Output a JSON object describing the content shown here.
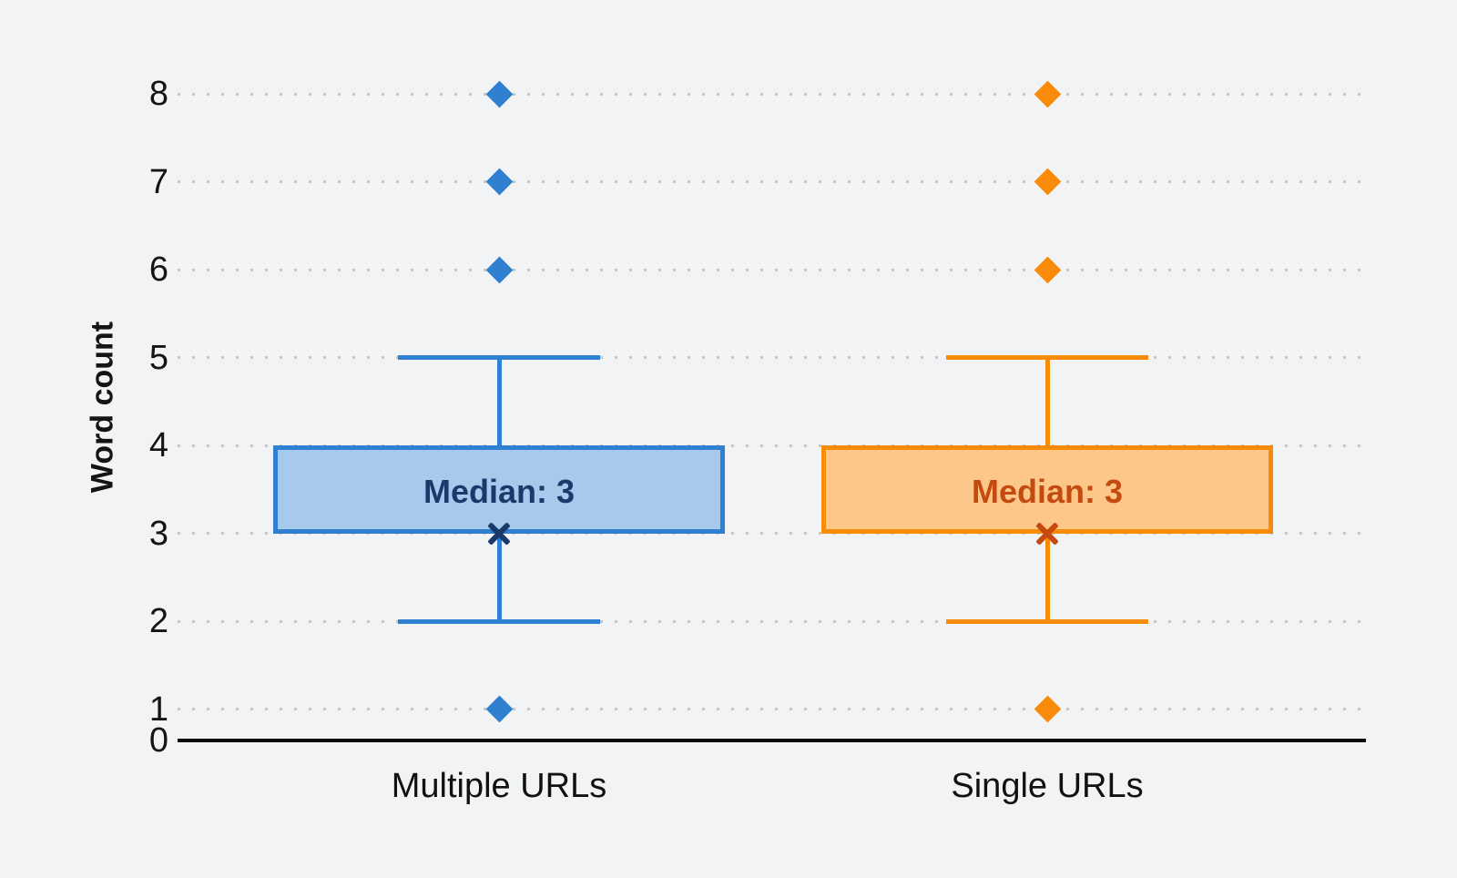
{
  "background": "#f2f3f5",
  "axis": {
    "ylabel": "Word count",
    "tick_color": "#141414",
    "baseline_color": "#0b0b0b",
    "gridline_color": "#c7c7c9"
  },
  "chart_data": {
    "type": "boxplot",
    "title": "",
    "ylabel": "Word count",
    "xlabel": "",
    "ylim": [
      0,
      8
    ],
    "yticks": [
      0,
      1,
      2,
      3,
      4,
      5,
      6,
      7,
      8
    ],
    "grid": "horizontal-dotted",
    "legend": "none",
    "categories": [
      "Multiple URLs",
      "Single URLs"
    ],
    "series": [
      {
        "name": "Multiple URLs",
        "q1": 3,
        "median": 3,
        "q3": 4,
        "whisker_low": 2,
        "whisker_high": 5,
        "outliers": [
          1,
          6,
          7,
          8
        ],
        "median_label": "Median: 3",
        "stroke": "#2f80d1",
        "fill": "#a6c9ec",
        "accent_dark": "#1a3a6b"
      },
      {
        "name": "Single URLs",
        "q1": 3,
        "median": 3,
        "q3": 4,
        "whisker_low": 2,
        "whisker_high": 5,
        "outliers": [
          1,
          6,
          7,
          8
        ],
        "median_label": "Median: 3",
        "stroke": "#f98b0b",
        "fill": "#fec78a",
        "accent_dark": "#c54a0f"
      }
    ]
  }
}
